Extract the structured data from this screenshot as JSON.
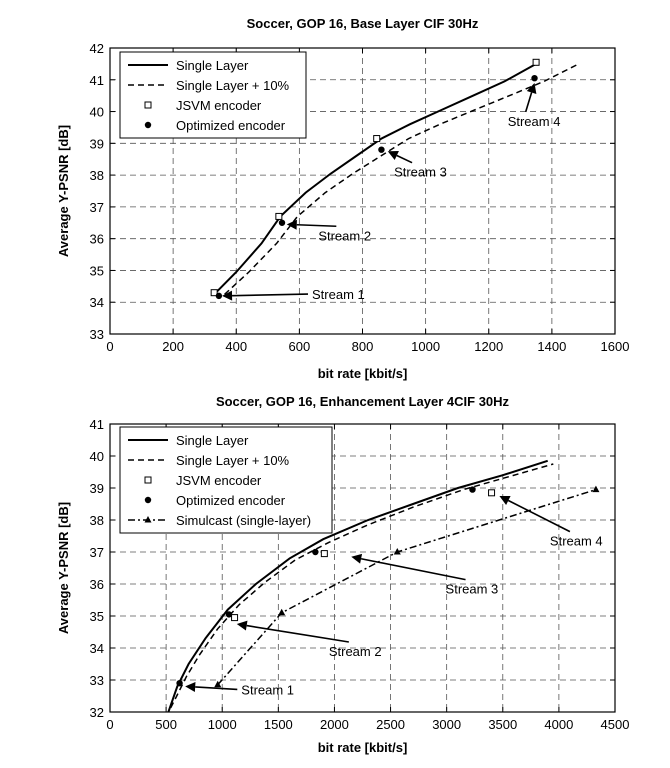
{
  "chart_data": [
    {
      "type": "line",
      "title": "Soccer, GOP 16, Base Layer CIF 30Hz",
      "xlabel": "bit rate [kbit/s]",
      "ylabel": "Average Y-PSNR [dB]",
      "xlim": [
        0,
        1600
      ],
      "ylim": [
        33,
        42
      ],
      "xticks": [
        0,
        200,
        400,
        600,
        800,
        1000,
        1200,
        1400,
        1600
      ],
      "yticks": [
        33,
        34,
        35,
        36,
        37,
        38,
        39,
        40,
        41,
        42
      ],
      "grid": true,
      "legend_position": "top-left",
      "series": [
        {
          "name": "Single Layer",
          "style": "solid",
          "marker": "none",
          "x": [
            330,
            400,
            480,
            540,
            620,
            700,
            780,
            860,
            950,
            1050,
            1150,
            1250,
            1350
          ],
          "y": [
            34.25,
            34.95,
            35.85,
            36.7,
            37.45,
            38.05,
            38.6,
            39.15,
            39.6,
            40.05,
            40.5,
            40.95,
            41.5
          ]
        },
        {
          "name": "Single Layer + 10%",
          "style": "dashed",
          "marker": "none",
          "x": [
            363,
            440,
            528,
            594,
            682,
            770,
            858,
            946,
            1045,
            1155,
            1265,
            1375,
            1485
          ],
          "y": [
            34.25,
            34.95,
            35.85,
            36.7,
            37.45,
            38.05,
            38.6,
            39.15,
            39.6,
            40.05,
            40.5,
            40.95,
            41.5
          ]
        },
        {
          "name": "JSVM encoder",
          "style": "none",
          "marker": "square",
          "x": [
            330,
            535,
            845,
            1350
          ],
          "y": [
            34.3,
            36.7,
            39.15,
            41.55
          ]
        },
        {
          "name": "Optimized encoder",
          "style": "none",
          "marker": "dot",
          "x": [
            345,
            545,
            860,
            1345
          ],
          "y": [
            34.2,
            36.5,
            38.8,
            41.05
          ]
        }
      ],
      "annotations": [
        {
          "text": "Stream 1",
          "x": 640,
          "y": 34.1,
          "arrow_to": [
            355,
            34.2
          ]
        },
        {
          "text": "Stream 2",
          "x": 660,
          "y": 35.95,
          "arrow_to": [
            560,
            36.45
          ]
        },
        {
          "text": "Stream 3",
          "x": 900,
          "y": 37.95,
          "arrow_to": [
            880,
            38.75
          ]
        },
        {
          "text": "Stream 4",
          "x": 1260,
          "y": 39.55,
          "arrow_to": [
            1345,
            40.9
          ]
        }
      ]
    },
    {
      "type": "line",
      "title": "Soccer, GOP 16, Enhancement Layer 4CIF 30Hz",
      "xlabel": "bit rate [kbit/s]",
      "ylabel": "Average Y-PSNR [dB]",
      "xlim": [
        0,
        4500
      ],
      "ylim": [
        32,
        41
      ],
      "xticks": [
        0,
        500,
        1000,
        1500,
        2000,
        2500,
        3000,
        3500,
        4000,
        4500
      ],
      "yticks": [
        32,
        33,
        34,
        35,
        36,
        37,
        38,
        39,
        40,
        41
      ],
      "grid": true,
      "legend_position": "top-left",
      "series": [
        {
          "name": "Single Layer",
          "style": "solid",
          "marker": "none",
          "x": [
            520,
            600,
            700,
            850,
            1050,
            1300,
            1600,
            1900,
            2300,
            2700,
            3100,
            3500,
            3900
          ],
          "y": [
            32.0,
            32.8,
            33.5,
            34.3,
            35.2,
            36.0,
            36.8,
            37.4,
            38.0,
            38.5,
            39.0,
            39.4,
            39.85
          ]
        },
        {
          "name": "Single Layer + 10%",
          "style": "dashed",
          "marker": "none",
          "x": [
            500,
            580,
            680,
            800,
            960,
            1150,
            1380,
            1650,
            1950,
            2300,
            2700,
            3150,
            3550,
            3950
          ],
          "y": [
            31.85,
            32.4,
            33.1,
            33.8,
            34.6,
            35.35,
            36.05,
            36.75,
            37.3,
            37.85,
            38.4,
            38.95,
            39.35,
            39.75
          ]
        },
        {
          "name": "JSVM encoder",
          "style": "none",
          "marker": "square",
          "x": [
            1110,
            1910,
            3400
          ],
          "y": [
            34.95,
            36.95,
            38.85
          ]
        },
        {
          "name": "Optimized encoder",
          "style": "none",
          "marker": "dot",
          "x": [
            620,
            1060,
            1830,
            3230
          ],
          "y": [
            32.9,
            35.05,
            37.0,
            38.95
          ]
        },
        {
          "name": "Simulcast (single-layer)",
          "style": "dashdot",
          "marker": "triangle",
          "x": [
            960,
            1530,
            2560,
            4330
          ],
          "y": [
            32.85,
            35.1,
            37.0,
            38.95
          ]
        }
      ],
      "annotations": [
        {
          "text": "Stream 1",
          "x": 1170,
          "y": 32.55,
          "arrow_to": [
            670,
            32.8
          ]
        },
        {
          "text": "Stream 2",
          "x": 1950,
          "y": 33.75,
          "arrow_to": [
            1130,
            34.75
          ]
        },
        {
          "text": "Stream 3",
          "x": 2990,
          "y": 35.7,
          "arrow_to": [
            2150,
            36.85
          ]
        },
        {
          "text": "Stream 4",
          "x": 3920,
          "y": 37.2,
          "arrow_to": [
            3470,
            38.75
          ]
        }
      ]
    }
  ]
}
